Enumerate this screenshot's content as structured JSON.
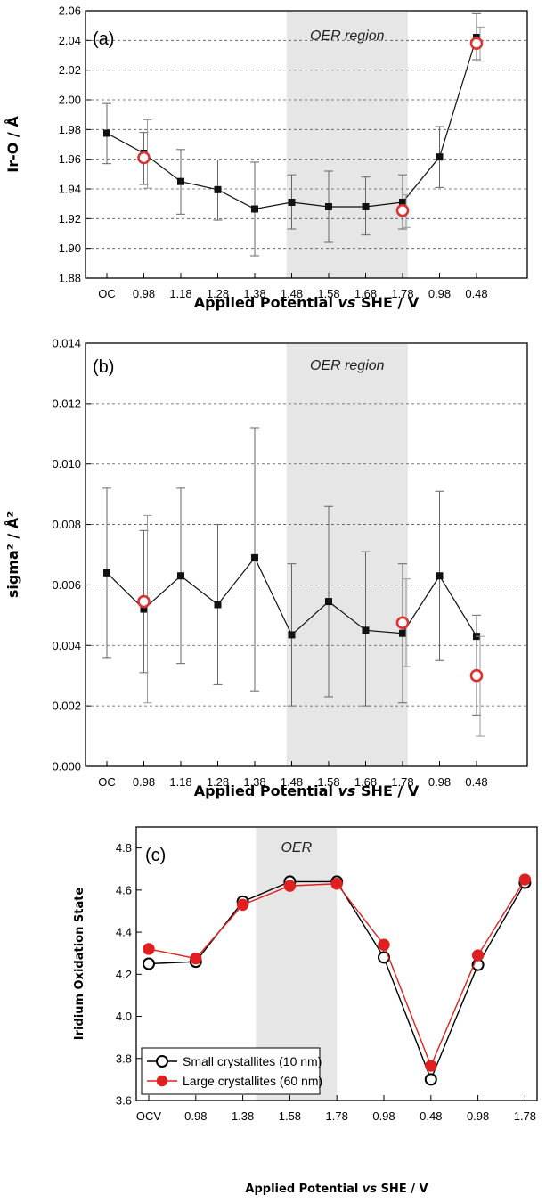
{
  "chart_data": [
    {
      "type": "line",
      "panel_label": "(a)",
      "shaded_region_label": "OER region",
      "shaded_region": [
        "1.48",
        "1.78"
      ],
      "ylabel": "Ir-O / Å",
      "xlabel_parts": [
        "Applied Potential ",
        "vs",
        " SHE / V"
      ],
      "categories": [
        "OC",
        "0.98",
        "1.18",
        "1.28",
        "1.38",
        "1.48",
        "1.58",
        "1.68",
        "1.78",
        "0.98",
        "0.48"
      ],
      "ylim": [
        1.88,
        2.06
      ],
      "yticks": [
        "1.88",
        "1.90",
        "1.92",
        "1.94",
        "1.96",
        "1.98",
        "2.00",
        "2.02",
        "2.04",
        "2.06"
      ],
      "grid": true,
      "series": [
        {
          "marker": "square",
          "color": "#111111",
          "values": [
            1.9775,
            1.964,
            1.945,
            1.9395,
            1.9265,
            1.931,
            1.928,
            1.928,
            1.931,
            1.9615,
            2.042
          ],
          "err_low": [
            1.957,
            1.943,
            1.923,
            1.919,
            1.895,
            1.913,
            1.904,
            1.909,
            1.913,
            1.941,
            2.027
          ],
          "err_high": [
            1.9975,
            1.978,
            1.9665,
            1.9595,
            1.958,
            1.9495,
            1.952,
            1.948,
            1.9495,
            1.982,
            2.058
          ]
        },
        {
          "marker": "open-circle",
          "color": "#e03030",
          "points": [
            {
              "index": 1,
              "value": 1.961,
              "err_low": 1.9405,
              "err_high": 1.9865
            },
            {
              "index": 8,
              "value": 1.9255,
              "err_low": 1.914,
              "err_high": 1.936
            },
            {
              "index": 10,
              "value": 2.038,
              "err_low": 2.026,
              "err_high": 2.049
            }
          ]
        }
      ]
    },
    {
      "type": "line",
      "panel_label": "(b)",
      "shaded_region_label": "OER region",
      "shaded_region": [
        "1.48",
        "1.78"
      ],
      "ylabel": "sigma² / Å²",
      "xlabel_parts": [
        "Applied Potential ",
        "vs",
        " SHE / V"
      ],
      "categories": [
        "OC",
        "0.98",
        "1.18",
        "1.28",
        "1.38",
        "1.48",
        "1.58",
        "1.68",
        "1.78",
        "0.98",
        "0.48"
      ],
      "ylim": [
        0.0,
        0.014
      ],
      "yticks": [
        "0.000",
        "0.002",
        "0.004",
        "0.006",
        "0.008",
        "0.010",
        "0.012",
        "0.014"
      ],
      "grid": true,
      "series": [
        {
          "marker": "square",
          "color": "#111111",
          "values": [
            0.0064,
            0.0052,
            0.0063,
            0.00535,
            0.0069,
            0.00435,
            0.00545,
            0.0045,
            0.0044,
            0.0063,
            0.0043
          ],
          "err_low": [
            0.0036,
            0.0031,
            0.0034,
            0.0027,
            0.0025,
            0.002,
            0.0023,
            0.002,
            0.0021,
            0.0035,
            0.0017
          ],
          "err_high": [
            0.0092,
            0.0078,
            0.0092,
            0.008,
            0.0112,
            0.0067,
            0.0086,
            0.0071,
            0.0067,
            0.0091,
            0.005
          ]
        },
        {
          "marker": "open-circle",
          "color": "#e03030",
          "points": [
            {
              "index": 1,
              "value": 0.00545,
              "err_low": 0.0021,
              "err_high": 0.0083
            },
            {
              "index": 8,
              "value": 0.00475,
              "err_low": 0.0033,
              "err_high": 0.0062
            },
            {
              "index": 10,
              "value": 0.003,
              "err_low": 0.001,
              "err_high": 0.0043
            }
          ]
        }
      ]
    },
    {
      "type": "line",
      "panel_label": "(c)",
      "shaded_region_label": "OER",
      "shaded_region": [
        "1.58",
        "1.78"
      ],
      "ylabel": "Iridium Oxidation State",
      "xlabel_parts": [
        "Applied Potential ",
        "vs",
        " SHE / V"
      ],
      "categories": [
        "OCV",
        "0.98",
        "1.38",
        "1.58",
        "1.78",
        "0.98",
        "0.48",
        "0.98",
        "1.78"
      ],
      "ylim": [
        3.6,
        4.9
      ],
      "yticks": [
        "3.6",
        "3.8",
        "4.0",
        "4.2",
        "4.4",
        "4.6",
        "4.8"
      ],
      "grid": false,
      "legend": "bottom-left",
      "series": [
        {
          "name": "Small crystallites (10 nm)",
          "marker": "open-circle",
          "color": "#000000",
          "values": [
            4.25,
            4.26,
            4.545,
            4.64,
            4.64,
            4.28,
            3.7,
            4.245,
            4.635
          ]
        },
        {
          "name": "Large crystallites (60 nm)",
          "marker": "filled-circle",
          "color": "#e02020",
          "values": [
            4.32,
            4.275,
            4.53,
            4.62,
            4.63,
            4.34,
            3.765,
            4.29,
            4.65
          ]
        }
      ]
    }
  ]
}
